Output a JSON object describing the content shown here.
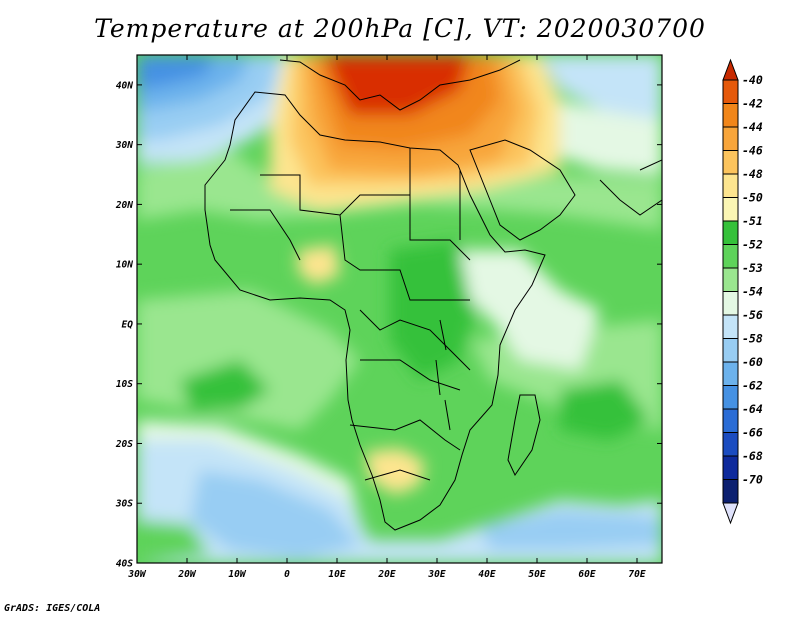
{
  "title": "Temperature at 200hPa [C], VT: 2020030700",
  "footer": "GrADS: IGES/COLA",
  "map": {
    "lat_ticks": [
      {
        "label": "40N",
        "value": 40
      },
      {
        "label": "30N",
        "value": 30
      },
      {
        "label": "20N",
        "value": 20
      },
      {
        "label": "10N",
        "value": 10
      },
      {
        "label": "EQ",
        "value": 0
      },
      {
        "label": "10S",
        "value": -10
      },
      {
        "label": "20S",
        "value": -20
      },
      {
        "label": "30S",
        "value": -30
      },
      {
        "label": "40S",
        "value": -40
      }
    ],
    "lon_ticks": [
      {
        "label": "30W",
        "value": -30
      },
      {
        "label": "20W",
        "value": -20
      },
      {
        "label": "10W",
        "value": -10
      },
      {
        "label": "0",
        "value": 0
      },
      {
        "label": "10E",
        "value": 10
      },
      {
        "label": "20E",
        "value": 20
      },
      {
        "label": "30E",
        "value": 30
      },
      {
        "label": "40E",
        "value": 40
      },
      {
        "label": "50E",
        "value": 50
      },
      {
        "label": "60E",
        "value": 60
      },
      {
        "label": "70E",
        "value": 70
      }
    ]
  },
  "colorbar": {
    "levels": [
      {
        "label": "-40",
        "color": "#cf2b00"
      },
      {
        "label": "-42",
        "color": "#e5590a"
      },
      {
        "label": "-44",
        "color": "#f1861a"
      },
      {
        "label": "-46",
        "color": "#f8a53a"
      },
      {
        "label": "-48",
        "color": "#fcc45d"
      },
      {
        "label": "-50",
        "color": "#fde58f"
      },
      {
        "label": "-51",
        "color": "#fbf6b4"
      },
      {
        "label": "-52",
        "color": "#35c13a"
      },
      {
        "label": "-53",
        "color": "#5ed35a"
      },
      {
        "label": "-54",
        "color": "#9ae68f"
      },
      {
        "label": "-56",
        "color": "#e4f8e4"
      },
      {
        "label": "-58",
        "color": "#c4e4f8"
      },
      {
        "label": "-60",
        "color": "#98cdf3"
      },
      {
        "label": "-62",
        "color": "#6cb2ec"
      },
      {
        "label": "-64",
        "color": "#4591e3"
      },
      {
        "label": "-66",
        "color": "#2a6cd5"
      },
      {
        "label": "-68",
        "color": "#1b4cc0"
      },
      {
        "label": "-70",
        "color": "#0e2a9c"
      }
    ],
    "top_color": "#c82a00",
    "bottom_color": "#dfe2fb",
    "bottom_extra_color": "#0c2070"
  },
  "field_colors": {
    "hot": "#d92d00",
    "orange": "#f1861a",
    "amber": "#f8a53a",
    "yellow": "#fcc45d",
    "pale_yellow": "#fde58f",
    "green_dark": "#35c13a",
    "green": "#5ed35a",
    "green_light": "#9ae68f",
    "mint": "#e4f8e4",
    "sky": "#c4e4f8",
    "blue_light": "#98cdf3",
    "blue": "#6cb2ec",
    "blue_mid": "#4591e3"
  }
}
